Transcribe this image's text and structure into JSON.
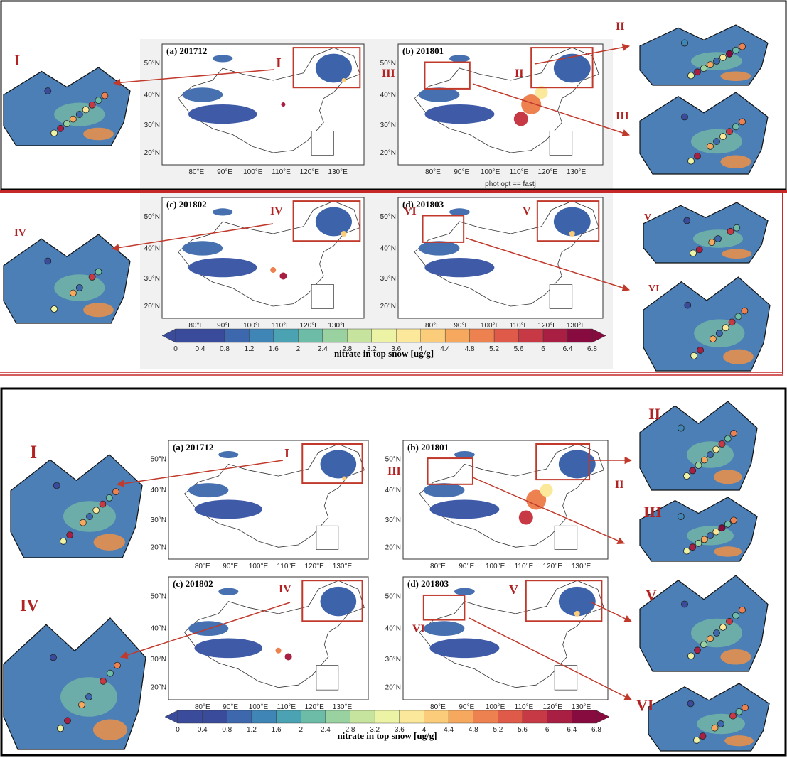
{
  "sections": [
    {
      "panels": [
        {
          "title": "(a) 201712"
        },
        {
          "title": "(b) 201801"
        },
        {
          "title": "(c) 201802"
        },
        {
          "title": "(d) 201803"
        }
      ],
      "lat_labels": [
        "50°N",
        "40°N",
        "30°N",
        "20°N"
      ],
      "lon_labels": [
        "80°E",
        "90°E",
        "100°E",
        "110°E",
        "120°E",
        "130°E"
      ],
      "note": "phot opt == fastj",
      "labels": [
        "I",
        "I",
        "II",
        "II",
        "III",
        "III",
        "IV",
        "IV",
        "V",
        "V",
        "VI",
        "VI"
      ],
      "colorbar": {
        "ticks": [
          0,
          0.4,
          0.8,
          1.2,
          1.6,
          2,
          2.4,
          2.8,
          3.2,
          3.6,
          4,
          4.4,
          4.8,
          5.2,
          5.6,
          6,
          6.4,
          6.8
        ],
        "label": "nitrate in top snow [ug/g]"
      }
    },
    {
      "panels": [
        {
          "title": "(a) 201712"
        },
        {
          "title": "(b) 201801"
        },
        {
          "title": "(c) 201802"
        },
        {
          "title": "(d) 201803"
        }
      ],
      "lat_labels": [
        "50°N",
        "40°N",
        "30°N",
        "20°N"
      ],
      "lon_labels": [
        "80°E",
        "90°E",
        "100°E",
        "110°E",
        "120°E",
        "130°E"
      ],
      "labels": [
        "I",
        "I",
        "II",
        "II",
        "III",
        "III",
        "IV",
        "IV",
        "V",
        "V",
        "VI",
        "VI"
      ],
      "colorbar": {
        "ticks": [
          0,
          0.4,
          0.8,
          1.2,
          1.6,
          2,
          2.4,
          2.8,
          3.2,
          3.6,
          4,
          4.4,
          4.8,
          5.2,
          5.6,
          6,
          6.4,
          6.8
        ],
        "label": "nitrate in top snow [ug/g]"
      }
    }
  ]
}
